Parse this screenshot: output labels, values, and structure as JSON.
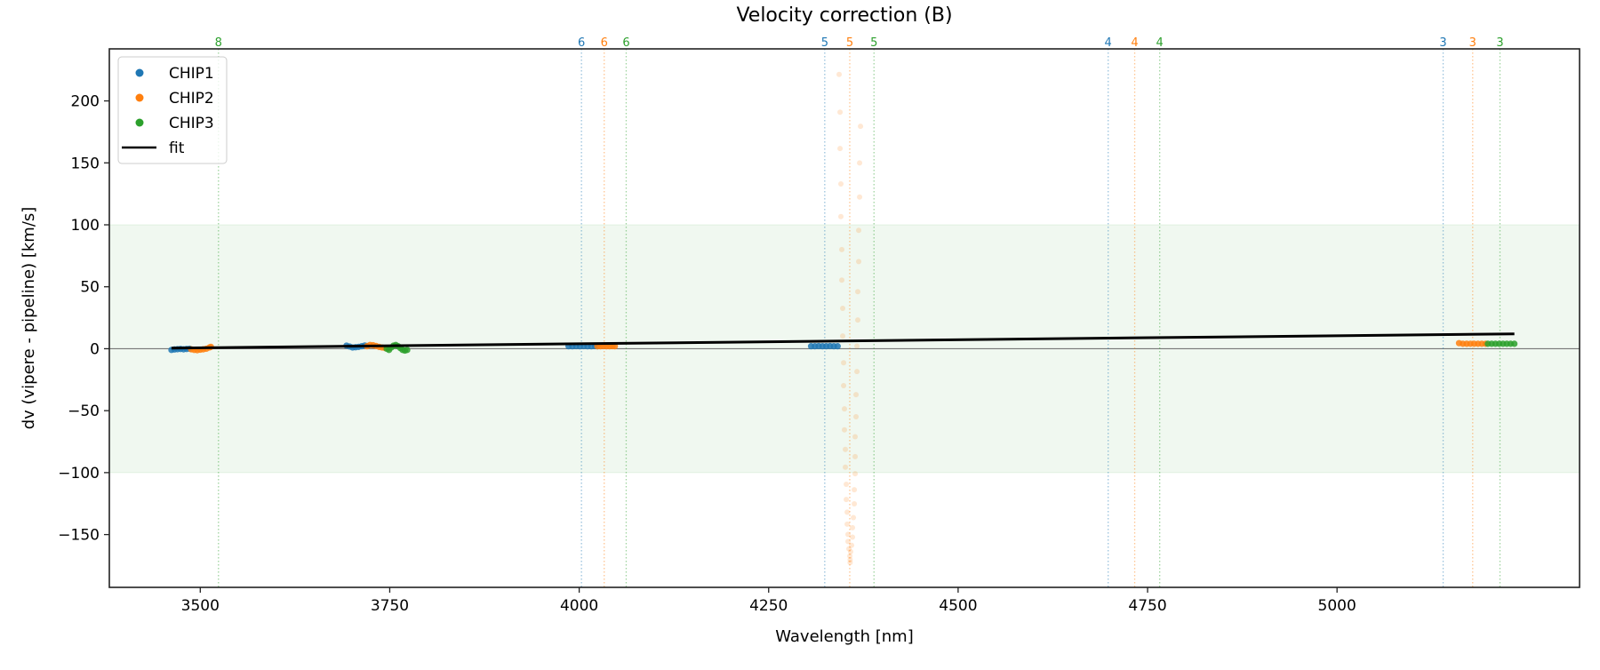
{
  "chart_data": {
    "type": "scatter",
    "title": "Velocity correction (B)",
    "xlabel": "Wavelength [nm]",
    "ylabel": "dv (vipere - pipeline) [km/s]",
    "xlim": [
      3380,
      5320
    ],
    "ylim": [
      -192.6,
      242
    ],
    "xticks": [
      3500,
      3750,
      4000,
      4250,
      4500,
      4750,
      5000
    ],
    "yticks": [
      200,
      150,
      100,
      50,
      0,
      -50,
      -100,
      -150
    ],
    "grid": false,
    "legend_position": "top-left",
    "shaded_band": {
      "ymin": -100,
      "ymax": 100,
      "color": "#2ca02c"
    },
    "zero_line": 0,
    "colors": {
      "CHIP1": "#1f77b4",
      "CHIP2": "#ff7f0e",
      "CHIP3": "#2ca02c",
      "fit": "#000000"
    },
    "legend": [
      "CHIP1",
      "CHIP2",
      "CHIP3",
      "fit"
    ],
    "order_lines": [
      {
        "label": "8",
        "x": 3524,
        "chip": "CHIP3"
      },
      {
        "label": "6",
        "x": 4003,
        "chip": "CHIP1"
      },
      {
        "label": "6",
        "x": 4033,
        "chip": "CHIP2"
      },
      {
        "label": "6",
        "x": 4062,
        "chip": "CHIP3"
      },
      {
        "label": "5",
        "x": 4324,
        "chip": "CHIP1"
      },
      {
        "label": "5",
        "x": 4357,
        "chip": "CHIP2"
      },
      {
        "label": "5",
        "x": 4389,
        "chip": "CHIP3"
      },
      {
        "label": "4",
        "x": 4698,
        "chip": "CHIP1"
      },
      {
        "label": "4",
        "x": 4733,
        "chip": "CHIP2"
      },
      {
        "label": "4",
        "x": 4766,
        "chip": "CHIP3"
      },
      {
        "label": "3",
        "x": 5140,
        "chip": "CHIP1"
      },
      {
        "label": "3",
        "x": 5179,
        "chip": "CHIP2"
      },
      {
        "label": "3",
        "x": 5215,
        "chip": "CHIP3"
      }
    ],
    "series": [
      {
        "name": "CHIP1",
        "points": [
          [
            3462,
            -1
          ],
          [
            3466,
            -0.6
          ],
          [
            3470,
            -0.4
          ],
          [
            3474,
            -0.2
          ],
          [
            3478,
            -0.5
          ],
          [
            3482,
            -0.2
          ],
          [
            3486,
            0
          ],
          [
            3693,
            2.5
          ],
          [
            3697,
            1.8
          ],
          [
            3701,
            1
          ],
          [
            3705,
            1.2
          ],
          [
            3709,
            1.5
          ],
          [
            3713,
            2
          ],
          [
            3717,
            2.6
          ],
          [
            3720,
            2.2
          ],
          [
            3986,
            2
          ],
          [
            3991,
            2
          ],
          [
            3996,
            2.1
          ],
          [
            4001,
            2
          ],
          [
            4006,
            2.1
          ],
          [
            4011,
            2
          ],
          [
            4016,
            2
          ],
          [
            4021,
            2.1
          ],
          [
            4024,
            2
          ],
          [
            4306,
            2
          ],
          [
            4311,
            2
          ],
          [
            4316,
            2.1
          ],
          [
            4321,
            2
          ],
          [
            4326,
            2
          ],
          [
            4331,
            2.1
          ],
          [
            4336,
            2
          ],
          [
            4341,
            2
          ]
        ]
      },
      {
        "name": "CHIP2",
        "points": [
          [
            3488,
            -0.5
          ],
          [
            3492,
            -1
          ],
          [
            3496,
            -1.2
          ],
          [
            3500,
            -0.8
          ],
          [
            3504,
            -0.5
          ],
          [
            3508,
            0
          ],
          [
            3512,
            1
          ],
          [
            3514,
            1.5
          ],
          [
            3720,
            2
          ],
          [
            3724,
            3
          ],
          [
            3728,
            2.8
          ],
          [
            3732,
            2.2
          ],
          [
            3736,
            1.5
          ],
          [
            3740,
            1
          ],
          [
            3744,
            0.5
          ],
          [
            3748,
            0.2
          ],
          [
            4024,
            2
          ],
          [
            4028,
            2
          ],
          [
            4032,
            2.1
          ],
          [
            4036,
            2
          ],
          [
            4040,
            2
          ],
          [
            4044,
            2.1
          ],
          [
            4047,
            2
          ],
          [
            5161,
            4.5
          ],
          [
            5166,
            4
          ],
          [
            5171,
            4
          ],
          [
            5176,
            4
          ],
          [
            5181,
            4
          ],
          [
            5186,
            4
          ],
          [
            5191,
            4
          ],
          [
            5196,
            4
          ]
        ]
      },
      {
        "name": "CHIP2 (outliers, faint)",
        "points": [
          [
            4343.0,
            221.4
          ],
          [
            4344.2,
            190.9
          ],
          [
            4371.2,
            179.5
          ],
          [
            4344.2,
            161.6
          ],
          [
            4370.0,
            149.9
          ],
          [
            4345.3,
            133.0
          ],
          [
            4370.0,
            122.4
          ],
          [
            4345.3,
            106.6
          ],
          [
            4368.8,
            95.5
          ],
          [
            4346.5,
            80.0
          ],
          [
            4368.8,
            70.3
          ],
          [
            4346.5,
            55.4
          ],
          [
            4367.6,
            46.0
          ],
          [
            4347.7,
            32.6
          ],
          [
            4367.6,
            23.2
          ],
          [
            4347.7,
            10.3
          ],
          [
            4366.5,
            2.1
          ],
          [
            4348.9,
            -11.3
          ],
          [
            4366.5,
            -18.4
          ],
          [
            4348.9,
            -29.8
          ],
          [
            4365.3,
            -37.1
          ],
          [
            4350.0,
            -48.5
          ],
          [
            4365.3,
            -54.9
          ],
          [
            4350.0,
            -65.5
          ],
          [
            4364.1,
            -71.0
          ],
          [
            4351.2,
            -81.3
          ],
          [
            4364.1,
            -87.1
          ],
          [
            4351.2,
            -95.6
          ],
          [
            4364.1,
            -100.9
          ],
          [
            4352.4,
            -109.4
          ],
          [
            4363.0,
            -113.8
          ],
          [
            4352.4,
            -121.7
          ],
          [
            4363.0,
            -125.2
          ],
          [
            4353.6,
            -131.9
          ],
          [
            4361.8,
            -136.3
          ],
          [
            4353.6,
            -141.6
          ],
          [
            4360.6,
            -144.5
          ],
          [
            4354.7,
            -149.8
          ],
          [
            4360.6,
            -152.1
          ],
          [
            4354.7,
            -155.6
          ],
          [
            4359.4,
            -158.6
          ],
          [
            4355.9,
            -161.5
          ],
          [
            4358.2,
            -163.8
          ],
          [
            4357.1,
            -167.3
          ],
          [
            4357.5,
            -170.3
          ],
          [
            4357.5,
            -172.6
          ]
        ]
      },
      {
        "name": "CHIP3",
        "points": [
          [
            3746,
            0
          ],
          [
            3749,
            -1
          ],
          [
            3752,
            1
          ],
          [
            3755,
            2.5
          ],
          [
            3758,
            3
          ],
          [
            3761,
            2
          ],
          [
            3764,
            0.5
          ],
          [
            3767,
            -1
          ],
          [
            3770,
            -1.5
          ],
          [
            3773,
            -1
          ],
          [
            5199,
            4
          ],
          [
            5204,
            4
          ],
          [
            5209,
            4
          ],
          [
            5214,
            4
          ],
          [
            5219,
            4
          ],
          [
            5224,
            4
          ],
          [
            5229,
            4
          ],
          [
            5234,
            4
          ]
        ]
      },
      {
        "name": "fit",
        "type": "line",
        "x": [
          3462,
          5234
        ],
        "y": [
          0.5,
          12
        ]
      }
    ]
  }
}
